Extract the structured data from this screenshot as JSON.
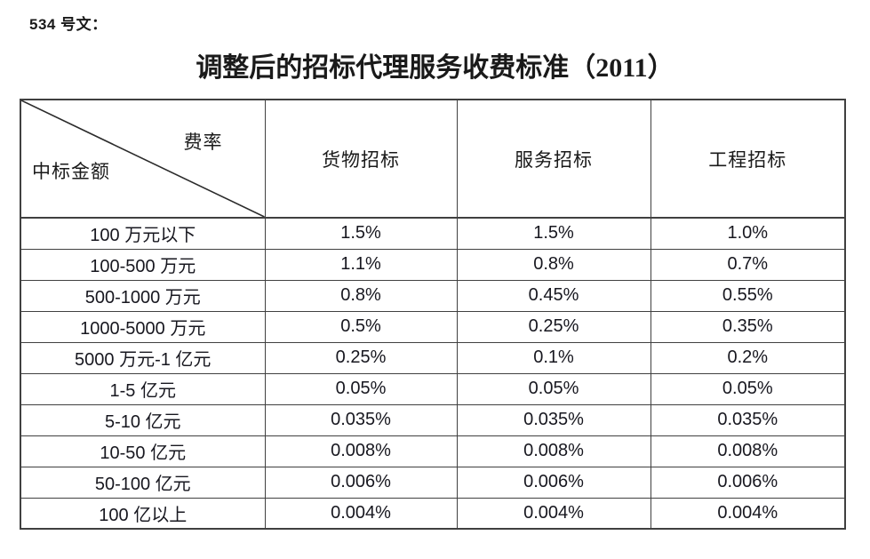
{
  "page": {
    "doc_label": "534 号文：",
    "title": "调整后的招标代理服务收费标准（2011）"
  },
  "table": {
    "corner": {
      "top_right": "费率",
      "bottom_left": "中标金额"
    },
    "columns": [
      "货物招标",
      "服务招标",
      "工程招标"
    ],
    "rows": [
      {
        "range": "100 万元以下",
        "values": [
          "1.5%",
          "1.5%",
          "1.0%"
        ]
      },
      {
        "range": "100-500 万元",
        "values": [
          "1.1%",
          "0.8%",
          "0.7%"
        ]
      },
      {
        "range": "500-1000 万元",
        "values": [
          "0.8%",
          "0.45%",
          "0.55%"
        ]
      },
      {
        "range": "1000-5000 万元",
        "values": [
          "0.5%",
          "0.25%",
          "0.35%"
        ]
      },
      {
        "range": "5000 万元-1 亿元",
        "values": [
          "0.25%",
          "0.1%",
          "0.2%"
        ]
      },
      {
        "range": "1-5 亿元",
        "values": [
          "0.05%",
          "0.05%",
          "0.05%"
        ]
      },
      {
        "range": "5-10 亿元",
        "values": [
          "0.035%",
          "0.035%",
          "0.035%"
        ]
      },
      {
        "range": "10-50 亿元",
        "values": [
          "0.008%",
          "0.008%",
          "0.008%"
        ]
      },
      {
        "range": "50-100 亿元",
        "values": [
          "0.006%",
          "0.006%",
          "0.006%"
        ]
      },
      {
        "range": "100 亿以上",
        "values": [
          "0.004%",
          "0.004%",
          "0.004%"
        ]
      }
    ]
  },
  "colors": {
    "text": "#1a1a1a",
    "border": "#404040",
    "background": "#ffffff"
  }
}
